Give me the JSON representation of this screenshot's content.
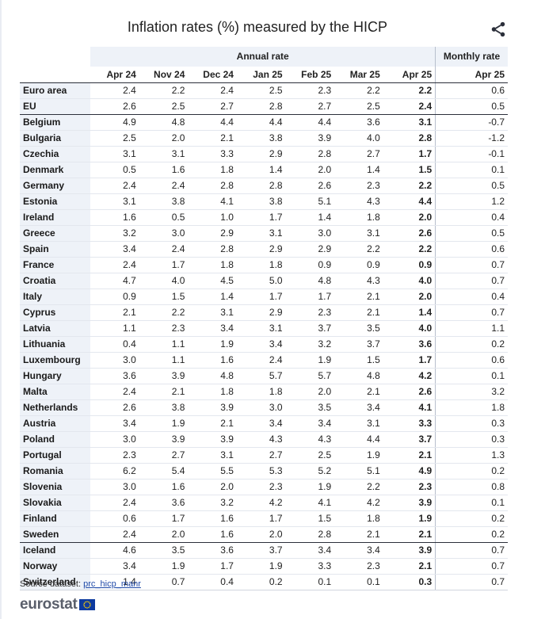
{
  "title": "Inflation rates (%) measured by the HICP",
  "share_icon": "share-icon",
  "source_label": "Source dataset:",
  "source_link": "prc_hicp_manr",
  "logo_text": "eurostat",
  "chart_data": {
    "type": "table",
    "column_groups": [
      {
        "label": "Annual rate",
        "span": 7
      },
      {
        "label": "Monthly rate",
        "span": 1
      }
    ],
    "columns": [
      "Apr 24",
      "Nov 24",
      "Dec 24",
      "Jan 25",
      "Feb 25",
      "Mar 25",
      "Apr 25",
      "Apr 25"
    ],
    "rows": [
      {
        "name": "Euro area",
        "values": [
          "2.4",
          "2.2",
          "2.4",
          "2.5",
          "2.3",
          "2.2",
          "2.2",
          "0.6"
        ]
      },
      {
        "name": "EU",
        "values": [
          "2.6",
          "2.5",
          "2.7",
          "2.8",
          "2.7",
          "2.5",
          "2.4",
          "0.5"
        ]
      },
      {
        "name": "Belgium",
        "values": [
          "4.9",
          "4.8",
          "4.4",
          "4.4",
          "4.4",
          "3.6",
          "3.1",
          "-0.7"
        ]
      },
      {
        "name": "Bulgaria",
        "values": [
          "2.5",
          "2.0",
          "2.1",
          "3.8",
          "3.9",
          "4.0",
          "2.8",
          "-1.2"
        ]
      },
      {
        "name": "Czechia",
        "values": [
          "3.1",
          "3.1",
          "3.3",
          "2.9",
          "2.8",
          "2.7",
          "1.7",
          "-0.1"
        ]
      },
      {
        "name": "Denmark",
        "values": [
          "0.5",
          "1.6",
          "1.8",
          "1.4",
          "2.0",
          "1.4",
          "1.5",
          "0.1"
        ]
      },
      {
        "name": "Germany",
        "values": [
          "2.4",
          "2.4",
          "2.8",
          "2.8",
          "2.6",
          "2.3",
          "2.2",
          "0.5"
        ]
      },
      {
        "name": "Estonia",
        "values": [
          "3.1",
          "3.8",
          "4.1",
          "3.8",
          "5.1",
          "4.3",
          "4.4",
          "1.2"
        ]
      },
      {
        "name": "Ireland",
        "values": [
          "1.6",
          "0.5",
          "1.0",
          "1.7",
          "1.4",
          "1.8",
          "2.0",
          "0.4"
        ]
      },
      {
        "name": "Greece",
        "values": [
          "3.2",
          "3.0",
          "2.9",
          "3.1",
          "3.0",
          "3.1",
          "2.6",
          "0.5"
        ]
      },
      {
        "name": "Spain",
        "values": [
          "3.4",
          "2.4",
          "2.8",
          "2.9",
          "2.9",
          "2.2",
          "2.2",
          "0.6"
        ]
      },
      {
        "name": "France",
        "values": [
          "2.4",
          "1.7",
          "1.8",
          "1.8",
          "0.9",
          "0.9",
          "0.9",
          "0.7"
        ]
      },
      {
        "name": "Croatia",
        "values": [
          "4.7",
          "4.0",
          "4.5",
          "5.0",
          "4.8",
          "4.3",
          "4.0",
          "0.7"
        ]
      },
      {
        "name": "Italy",
        "values": [
          "0.9",
          "1.5",
          "1.4",
          "1.7",
          "1.7",
          "2.1",
          "2.0",
          "0.4"
        ]
      },
      {
        "name": "Cyprus",
        "values": [
          "2.1",
          "2.2",
          "3.1",
          "2.9",
          "2.3",
          "2.1",
          "1.4",
          "0.7"
        ]
      },
      {
        "name": "Latvia",
        "values": [
          "1.1",
          "2.3",
          "3.4",
          "3.1",
          "3.7",
          "3.5",
          "4.0",
          "1.1"
        ]
      },
      {
        "name": "Lithuania",
        "values": [
          "0.4",
          "1.1",
          "1.9",
          "3.4",
          "3.2",
          "3.7",
          "3.6",
          "0.2"
        ]
      },
      {
        "name": "Luxembourg",
        "values": [
          "3.0",
          "1.1",
          "1.6",
          "2.4",
          "1.9",
          "1.5",
          "1.7",
          "0.6"
        ]
      },
      {
        "name": "Hungary",
        "values": [
          "3.6",
          "3.9",
          "4.8",
          "5.7",
          "5.7",
          "4.8",
          "4.2",
          "0.1"
        ]
      },
      {
        "name": "Malta",
        "values": [
          "2.4",
          "2.1",
          "1.8",
          "1.8",
          "2.0",
          "2.1",
          "2.6",
          "3.2"
        ]
      },
      {
        "name": "Netherlands",
        "values": [
          "2.6",
          "3.8",
          "3.9",
          "3.0",
          "3.5",
          "3.4",
          "4.1",
          "1.8"
        ]
      },
      {
        "name": "Austria",
        "values": [
          "3.4",
          "1.9",
          "2.1",
          "3.4",
          "3.4",
          "3.1",
          "3.3",
          "0.3"
        ]
      },
      {
        "name": "Poland",
        "values": [
          "3.0",
          "3.9",
          "3.9",
          "4.3",
          "4.3",
          "4.4",
          "3.7",
          "0.3"
        ]
      },
      {
        "name": "Portugal",
        "values": [
          "2.3",
          "2.7",
          "3.1",
          "2.7",
          "2.5",
          "1.9",
          "2.1",
          "1.3"
        ]
      },
      {
        "name": "Romania",
        "values": [
          "6.2",
          "5.4",
          "5.5",
          "5.3",
          "5.2",
          "5.1",
          "4.9",
          "0.2"
        ]
      },
      {
        "name": "Slovenia",
        "values": [
          "3.0",
          "1.6",
          "2.0",
          "2.3",
          "1.9",
          "2.2",
          "2.3",
          "0.8"
        ]
      },
      {
        "name": "Slovakia",
        "values": [
          "2.4",
          "3.6",
          "3.2",
          "4.2",
          "4.1",
          "4.2",
          "3.9",
          "0.1"
        ]
      },
      {
        "name": "Finland",
        "values": [
          "0.6",
          "1.7",
          "1.6",
          "1.7",
          "1.5",
          "1.8",
          "1.9",
          "0.2"
        ]
      },
      {
        "name": "Sweden",
        "values": [
          "2.4",
          "2.0",
          "1.6",
          "2.0",
          "2.8",
          "2.1",
          "2.1",
          "0.2"
        ]
      },
      {
        "name": "Iceland",
        "values": [
          "4.6",
          "3.5",
          "3.6",
          "3.7",
          "3.4",
          "3.4",
          "3.9",
          "0.7"
        ]
      },
      {
        "name": "Norway",
        "values": [
          "3.4",
          "1.9",
          "1.7",
          "1.9",
          "3.3",
          "2.3",
          "2.1",
          "0.7"
        ]
      },
      {
        "name": "Switzerland",
        "values": [
          "1.4",
          "0.7",
          "0.4",
          "0.2",
          "0.1",
          "0.1",
          "0.3",
          "0.7"
        ]
      }
    ]
  }
}
